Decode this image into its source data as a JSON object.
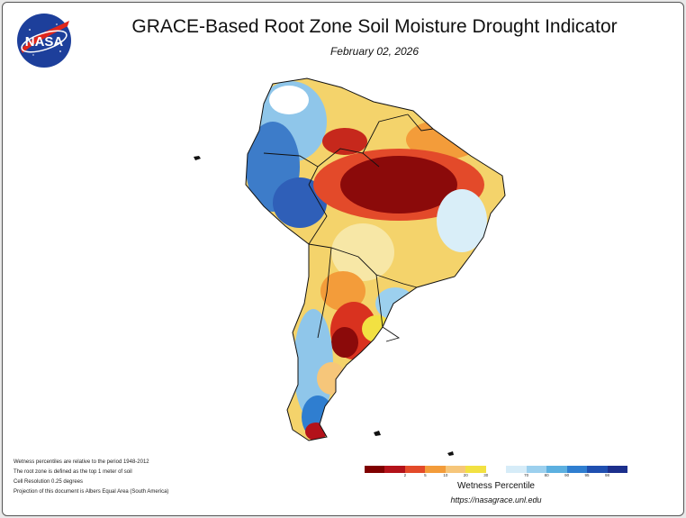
{
  "header": {
    "logo_text": "NASA",
    "title": "GRACE-Based Root Zone Soil Moisture Drought Indicator",
    "date": "February 02, 2026"
  },
  "notes": [
    "Wetness percentiles are relative to the period 1948-2012",
    "The root zone is defined as the top 1 meter of soil",
    "Cell Resolution 0.25 degrees",
    "Projection of this document is Albers Equal Area (South America)"
  ],
  "legend": {
    "title": "Wetness Percentile",
    "url": "https://nasagrace.unl.edu",
    "colors": [
      "#7f0000",
      "#b3121a",
      "#e34a2a",
      "#f39c3a",
      "#f6c67a",
      "#f2e142",
      "#ffffff",
      "#d6ecf8",
      "#9cd0ee",
      "#5cb0e0",
      "#2f7ed0",
      "#1f4fb0",
      "#1c2f8c"
    ],
    "ticks": [
      "2",
      "5",
      "10",
      "20",
      "30",
      "70",
      "80",
      "90",
      "95",
      "98"
    ]
  }
}
